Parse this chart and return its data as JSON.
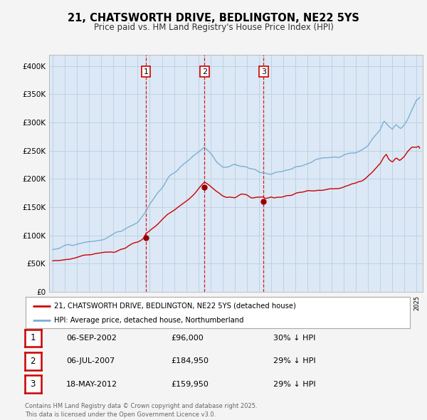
{
  "title": "21, CHATSWORTH DRIVE, BEDLINGTON, NE22 5YS",
  "subtitle": "Price paid vs. HM Land Registry's House Price Index (HPI)",
  "red_label": "21, CHATSWORTH DRIVE, BEDLINGTON, NE22 5YS (detached house)",
  "blue_label": "HPI: Average price, detached house, Northumberland",
  "red_color": "#cc0000",
  "blue_color": "#7ab0d4",
  "background_color": "#f4f4f4",
  "plot_bg_color": "#dce8f5",
  "grid_color": "#b8cfe0",
  "sale_dates_dec": [
    2002.674,
    2007.504,
    2012.378
  ],
  "sale_prices": [
    96000,
    184950,
    159950
  ],
  "sale_labels": [
    "1",
    "2",
    "3"
  ],
  "table_entries": [
    {
      "num": "1",
      "date": "06-SEP-2002",
      "price": "£96,000",
      "hpi": "30% ↓ HPI"
    },
    {
      "num": "2",
      "date": "06-JUL-2007",
      "price": "£184,950",
      "hpi": "29% ↓ HPI"
    },
    {
      "num": "3",
      "date": "18-MAY-2012",
      "price": "£159,950",
      "hpi": "29% ↓ HPI"
    }
  ],
  "footer": "Contains HM Land Registry data © Crown copyright and database right 2025.\nThis data is licensed under the Open Government Licence v3.0.",
  "ylim": [
    0,
    420000
  ],
  "yticks": [
    0,
    50000,
    100000,
    150000,
    200000,
    250000,
    300000,
    350000,
    400000
  ],
  "ytick_labels": [
    "£0",
    "£50K",
    "£100K",
    "£150K",
    "£200K",
    "£250K",
    "£300K",
    "£350K",
    "£400K"
  ],
  "xlim_start": 1994.7,
  "xlim_end": 2025.5
}
